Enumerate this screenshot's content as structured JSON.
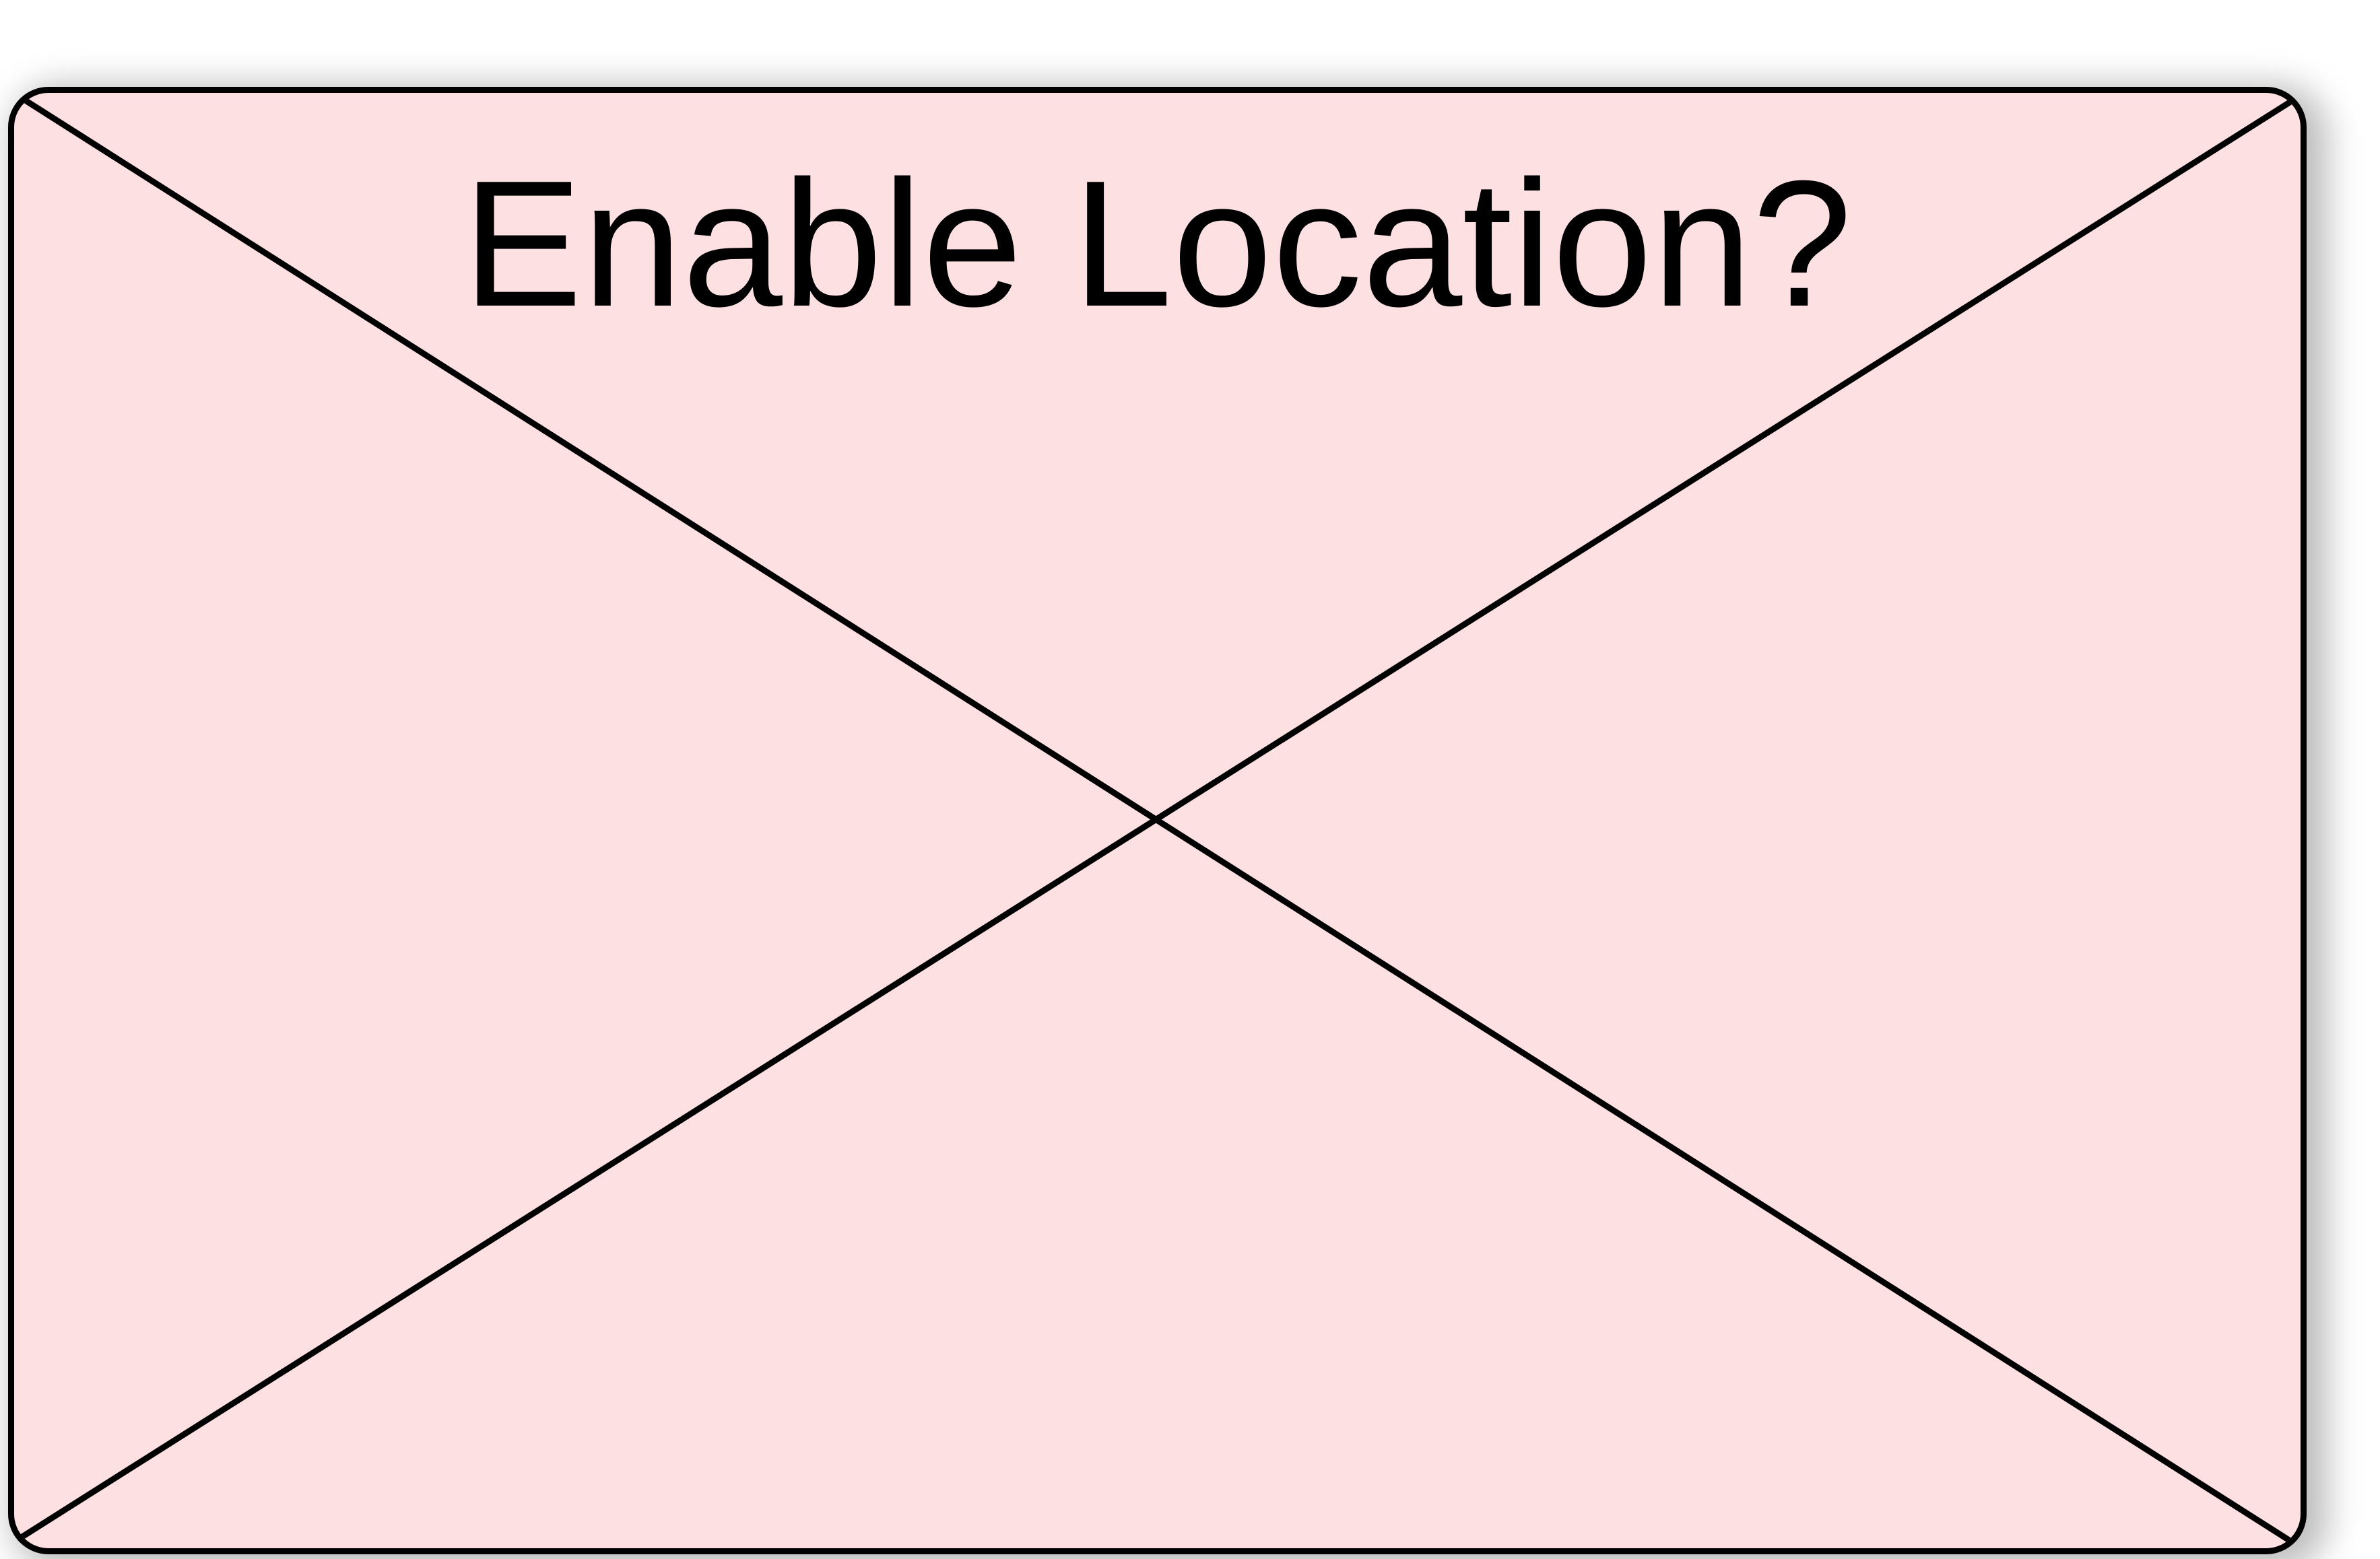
{
  "dialog": {
    "title": "Enable Location?",
    "placeholder_icon": "image-placeholder-cross-icon",
    "fill_color": "#fde0e2",
    "stroke_color": "#000000"
  }
}
